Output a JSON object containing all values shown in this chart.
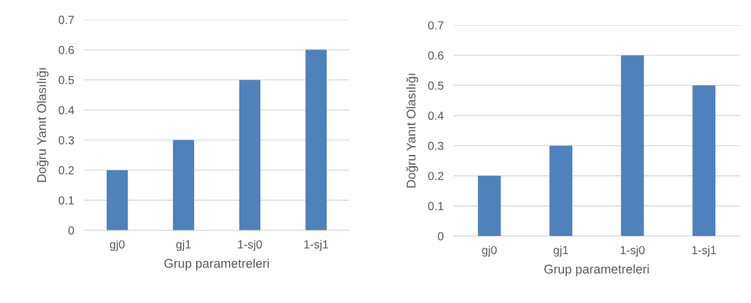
{
  "chart_data": [
    {
      "type": "bar",
      "xlabel": "Grup parametreleri",
      "ylabel": "Doğru Yanıt Olasılığı",
      "categories": [
        "gj0",
        "gj1",
        "1-sj0",
        "1-sj1"
      ],
      "values": [
        0.2,
        0.3,
        0.5,
        0.6
      ],
      "color": "#4f81bd",
      "ylim": [
        0,
        0.7
      ],
      "yticks": [
        {
          "value": 0,
          "label": "0"
        },
        0.1,
        0.2,
        0.3,
        0.4,
        0.5,
        0.6,
        0.7
      ],
      "grid": "y",
      "legend": false
    },
    {
      "type": "bar",
      "xlabel": "Grup parametreleri",
      "ylabel": "Doğru Yanıt Olasılığı",
      "categories": [
        "gj0",
        "gj1",
        "1-sj0",
        "1-sj1"
      ],
      "values": [
        0.2,
        0.3,
        0.6,
        0.5
      ],
      "color": "#4f81bd",
      "ylim": [
        0,
        0.7
      ],
      "yticks": [
        {
          "value": 0,
          "label": "0"
        },
        0.1,
        0.2,
        0.3,
        0.4,
        0.5,
        0.6,
        0.7
      ],
      "grid": "y",
      "legend": false
    }
  ]
}
